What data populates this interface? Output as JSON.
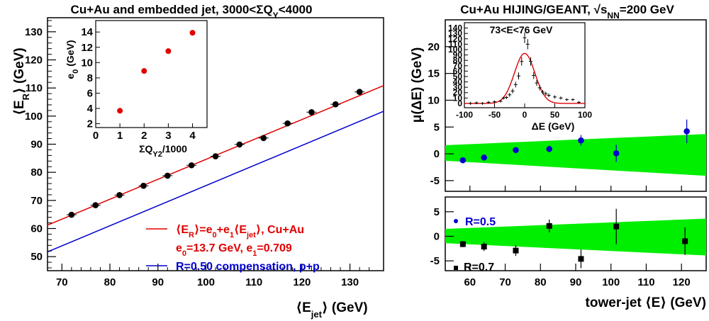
{
  "chart_data": [
    {
      "type": "scatter",
      "title": "Cu+Au and embedded jet, 3000<ΣQ_Y<4000",
      "xlabel": "⟨E_jet⟩ (GeV)",
      "ylabel": "⟨E_R⟩ (GeV)",
      "xlim": [
        67,
        137
      ],
      "ylim": [
        45,
        135
      ],
      "xticks": [
        "70",
        "80",
        "90",
        "100",
        "110",
        "120",
        "130"
      ],
      "yticks": [
        "50",
        "60",
        "70",
        "80",
        "90",
        "100",
        "110",
        "120",
        "130"
      ],
      "points": {
        "x": [
          72,
          77,
          82,
          87,
          92,
          97,
          102,
          107,
          112,
          117,
          122,
          127,
          132
        ],
        "y": [
          64.9,
          68.3,
          71.9,
          75.2,
          78.8,
          82.5,
          85.7,
          89.9,
          92.2,
          97.4,
          101.4,
          104.2,
          108.6
        ]
      },
      "lines": [
        {
          "name": "fit",
          "color": "#e00000",
          "intercept": 13.7,
          "slope": 0.709
        },
        {
          "name": "pp",
          "color": "#0000cc",
          "x": [
            67,
            137
          ],
          "y": [
            51.7,
            101.7
          ]
        }
      ],
      "legend": [
        {
          "color": "#e00000",
          "text_main": "⟨E",
          "sub1": "R",
          "text_mid": "⟩=e",
          "sub2": "0",
          "text_mid2": "+e",
          "sub3": "1",
          "text_mid3": "⟨E",
          "sub4": "jet",
          "text_end": "⟩, Cu+Au"
        },
        {
          "color": "#e00000",
          "text": "e₀=13.7 GeV, e₁=0.709"
        },
        {
          "color": "#0000cc",
          "text": "R=0.50 compensation, p+p"
        }
      ],
      "legend_e0": "e",
      "legend_e0_sub": "0",
      "legend_e0_rest": "=13.7 GeV, e",
      "legend_e1_sub": "1",
      "legend_e1_rest": "=0.709",
      "inset": {
        "xlabel": "ΣQ_Y2/1000",
        "ylabel": "e₀ (GeV)",
        "xlim": [
          0,
          4.6
        ],
        "ylim": [
          1.5,
          15.5
        ],
        "xticks": [
          "0",
          "1",
          "2",
          "3",
          "4"
        ],
        "yticks": [
          "2",
          "4",
          "6",
          "8",
          "10",
          "12",
          "14"
        ],
        "x": [
          1,
          2,
          3,
          4
        ],
        "y": [
          3.7,
          8.9,
          11.5,
          13.9
        ],
        "color": "#e00000"
      }
    },
    {
      "type": "scatter",
      "title": "Cu+Au HIJING/GEANT, √s_NN=200 GeV",
      "xlabel": "tower-jet ⟨E⟩ (GeV)",
      "ylabel": "μ(ΔE) (GeV)",
      "xlim": [
        53,
        127
      ],
      "xticks": [
        "60",
        "70",
        "80",
        "90",
        "100",
        "110",
        "120"
      ],
      "top": {
        "label": "R=0.5",
        "color": "#0000cc",
        "ylim": [
          -7,
          25
        ],
        "yticks": [
          "-5",
          "0",
          "5",
          "10",
          "15",
          "20"
        ],
        "band": {
          "x": [
            53,
            127
          ],
          "upper": [
            1.6,
            3.7
          ],
          "lower": [
            -1.3,
            -4.1
          ],
          "color": "#00ee00"
        },
        "x": [
          58,
          64,
          73,
          82.5,
          91.5,
          101.5,
          121.5
        ],
        "y": [
          -1.2,
          -0.7,
          0.7,
          0.9,
          2.5,
          0.1,
          4.2
        ],
        "err": [
          0.4,
          0.5,
          0.4,
          0.6,
          1.0,
          1.6,
          2.2
        ]
      },
      "bottom": {
        "label": "R=0.7",
        "color": "#000000",
        "ylim": [
          -7,
          8
        ],
        "yticks": [
          "-5",
          "0",
          "5"
        ],
        "band": {
          "x": [
            53,
            127
          ],
          "upper": [
            1.5,
            3.6
          ],
          "lower": [
            -1.4,
            -3.9
          ],
          "color": "#00ee00"
        },
        "x": [
          58,
          64,
          73,
          82.5,
          91.5,
          101.5,
          121
        ],
        "y": [
          -1.6,
          -2.1,
          -2.9,
          2.1,
          -4.6,
          2.0,
          -1.0
        ],
        "err": [
          0.6,
          0.9,
          1.1,
          1.3,
          1.9,
          3.6,
          2.8
        ]
      },
      "inset": {
        "label": "73<E<76 GeV",
        "xlabel": "ΔE (GeV)",
        "xlim": [
          -100,
          100
        ],
        "ylim": [
          -8,
          150
        ],
        "xticks": [
          "-100",
          "-50",
          "0",
          "50",
          "100"
        ],
        "yticks": [
          "0",
          "10",
          "20",
          "30",
          "40",
          "50",
          "60",
          "70",
          "80",
          "90",
          "100",
          "110",
          "120",
          "130",
          "140"
        ],
        "x": [
          -90,
          -80,
          -70,
          -60,
          -50,
          -40,
          -35,
          -30,
          -25,
          -20,
          -15,
          -10,
          -5,
          0,
          5,
          10,
          15,
          20,
          25,
          30,
          35,
          40,
          50,
          60,
          70,
          80,
          90
        ],
        "y": [
          0,
          1,
          0,
          2,
          3,
          4,
          10,
          11,
          16,
          23,
          35,
          51,
          78,
          122,
          110,
          78,
          52,
          38,
          29,
          21,
          18,
          15,
          12,
          10,
          7,
          7,
          2
        ],
        "fit": {
          "amp": 93,
          "mean": 0,
          "sigma": 17,
          "color": "#e00000"
        }
      }
    }
  ]
}
